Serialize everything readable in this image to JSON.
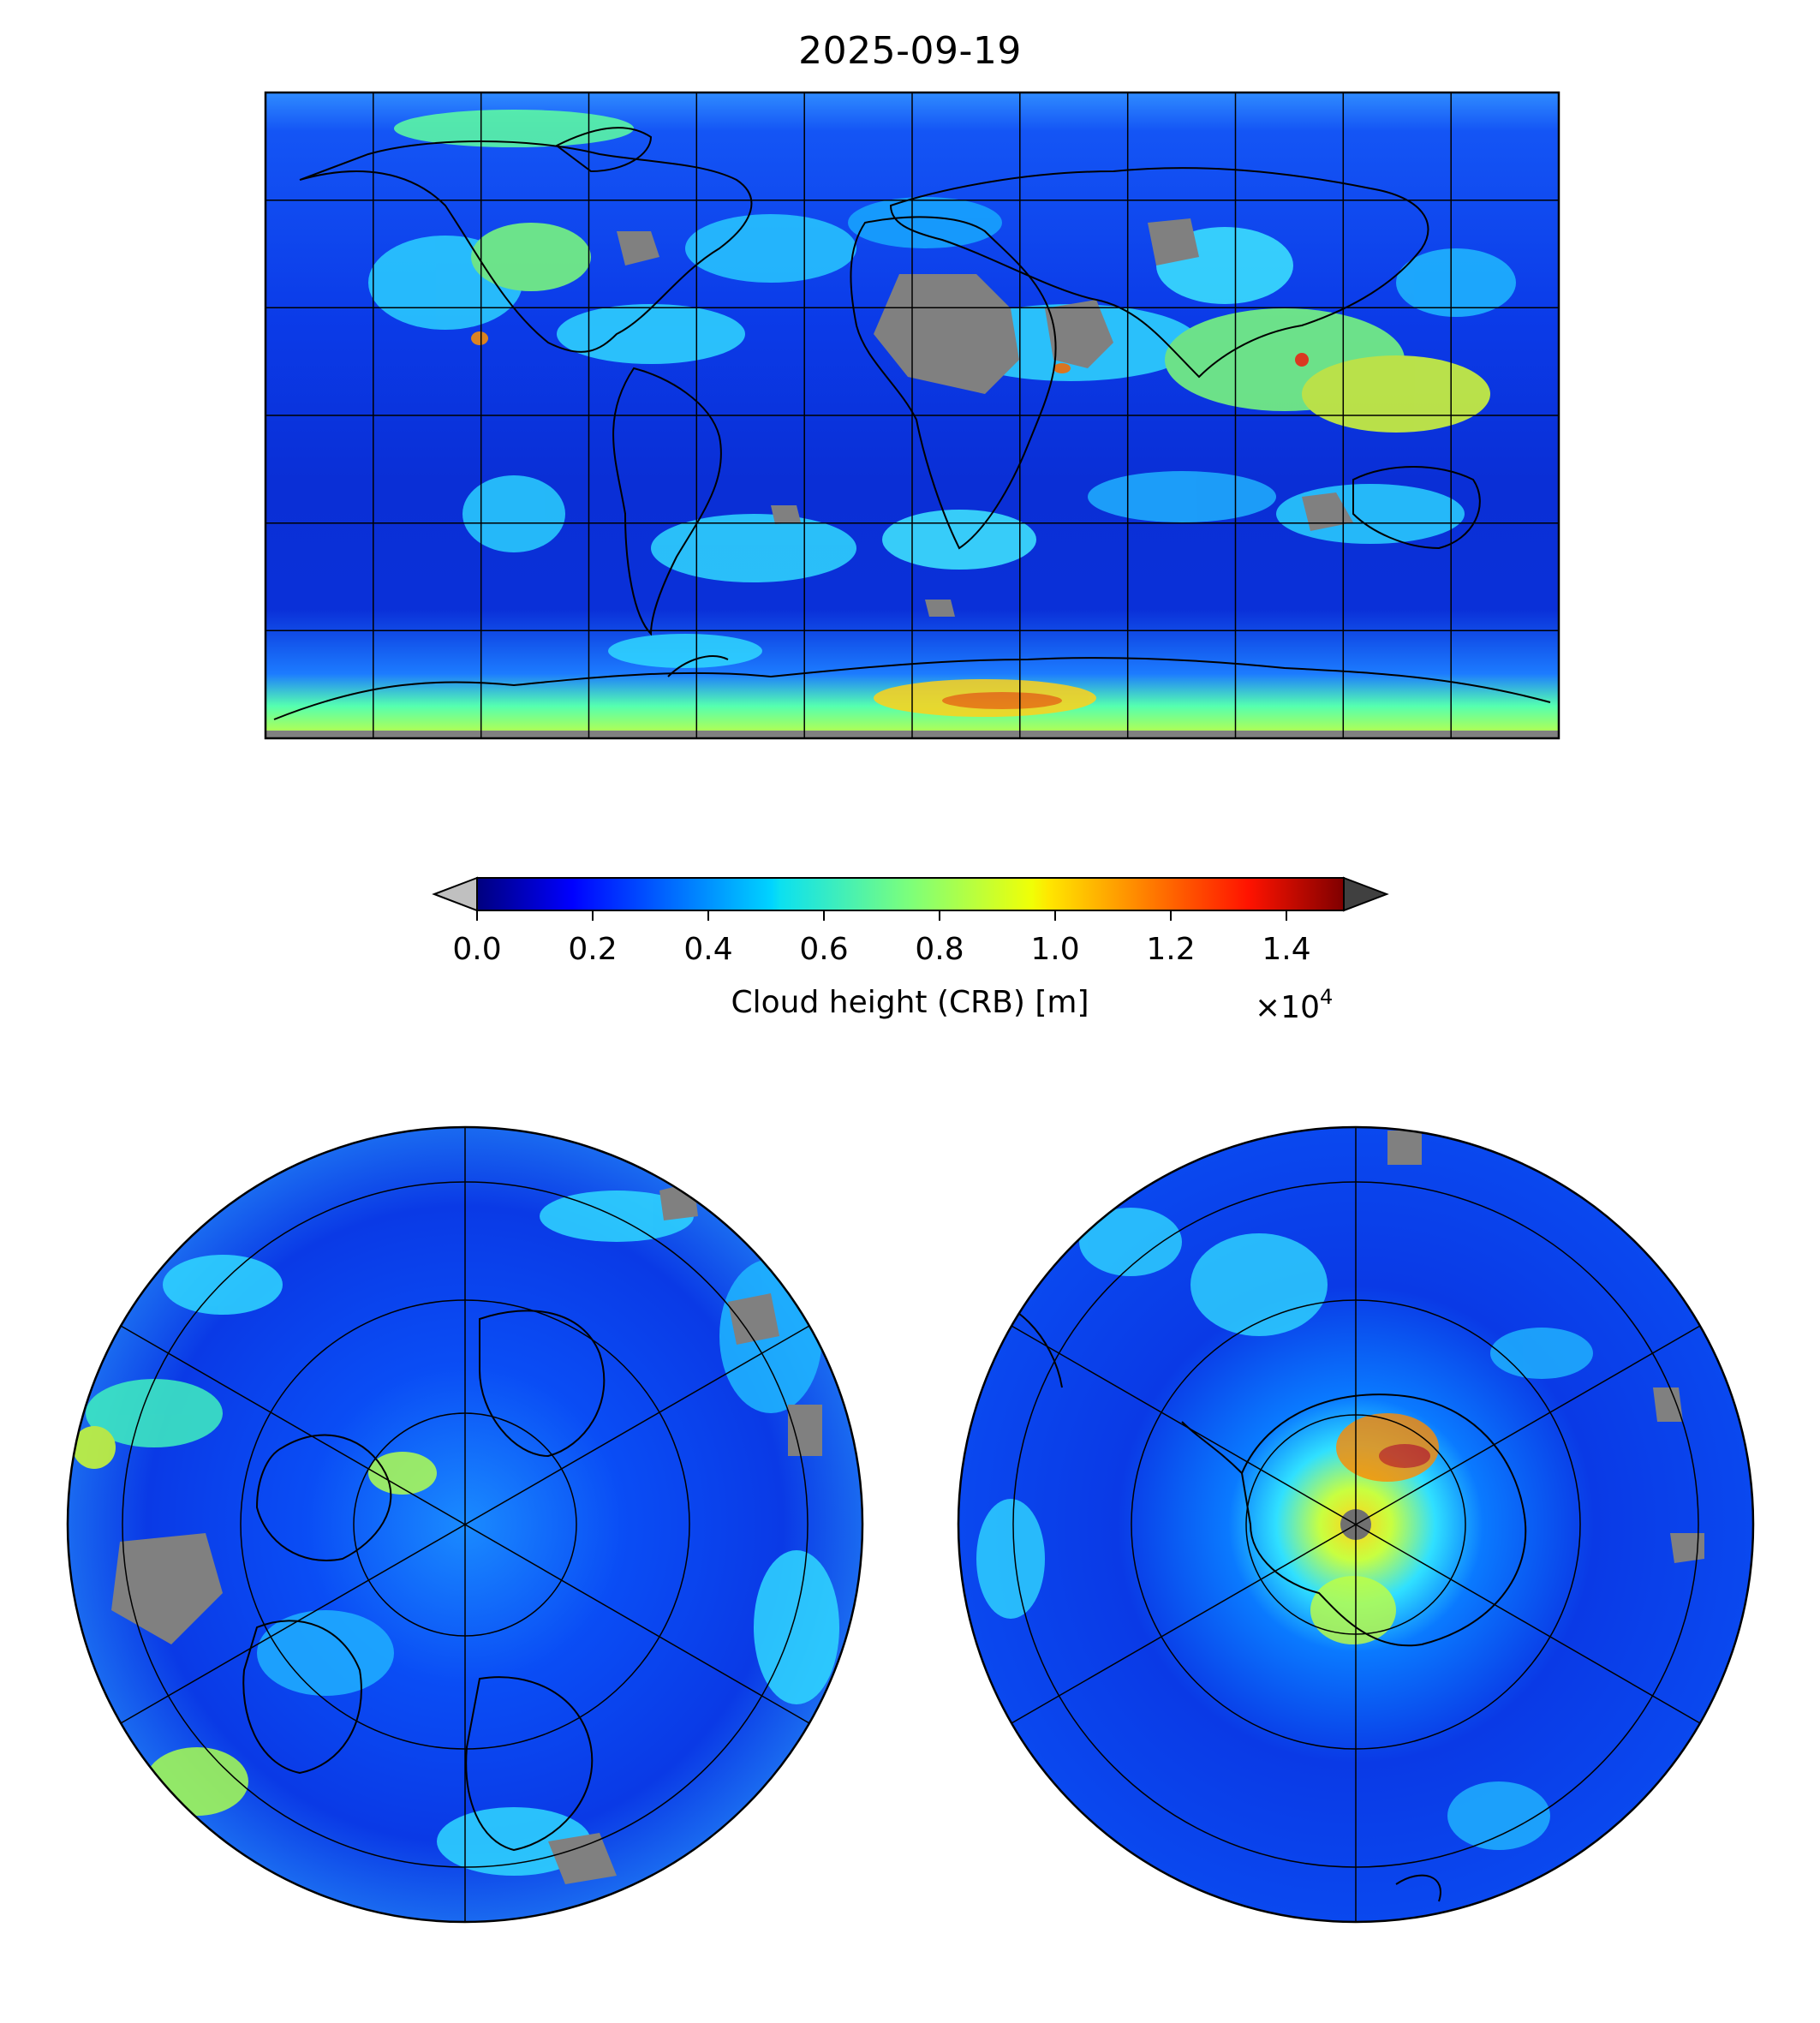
{
  "figure": {
    "title": "2025-09-19"
  },
  "colorbar": {
    "label": "Cloud height (CRB) [m]",
    "multiplier_base": "×10",
    "multiplier_exp": "4",
    "ticks": [
      "0.0",
      "0.2",
      "0.4",
      "0.6",
      "0.8",
      "1.0",
      "1.2",
      "1.4"
    ],
    "range": [
      0,
      15000
    ],
    "colormap": "jet",
    "extend": "both",
    "under_color": "#c0c0c0",
    "over_color": "#404040",
    "missing_color": "#808080"
  },
  "maps": [
    {
      "projection": "equirectangular",
      "extent": "global",
      "gridlines": "30°"
    },
    {
      "projection": "north-polar-stereographic",
      "center": "North Pole"
    },
    {
      "projection": "south-polar-stereographic",
      "center": "South Pole"
    }
  ]
}
